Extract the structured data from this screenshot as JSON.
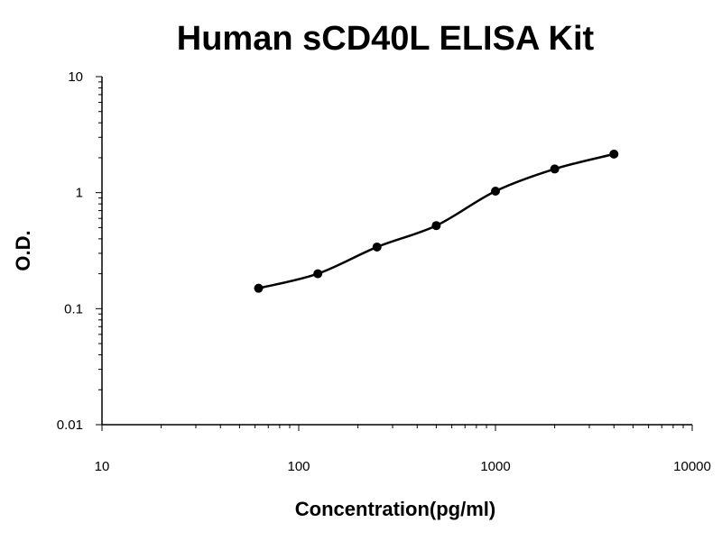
{
  "chart_data": {
    "type": "scatter",
    "title": "Human sCD40L ELISA Kit",
    "xlabel": "Concentration(pg/ml)",
    "ylabel": "O.D.",
    "x_scale": "log",
    "y_scale": "log",
    "xlim": [
      10,
      10000
    ],
    "ylim": [
      0.01,
      10
    ],
    "x_ticks": [
      "10",
      "100",
      "1000",
      "10000"
    ],
    "y_ticks": [
      "0.01",
      "0.1",
      "1",
      "10"
    ],
    "grid": false,
    "series": [
      {
        "x": [
          62.5,
          125,
          250,
          500,
          1000,
          2000,
          4000
        ],
        "y": [
          0.15,
          0.2,
          0.34,
          0.52,
          1.03,
          1.6,
          2.15
        ],
        "marker": "circle",
        "fit_line": true,
        "color": "#000000"
      }
    ]
  }
}
